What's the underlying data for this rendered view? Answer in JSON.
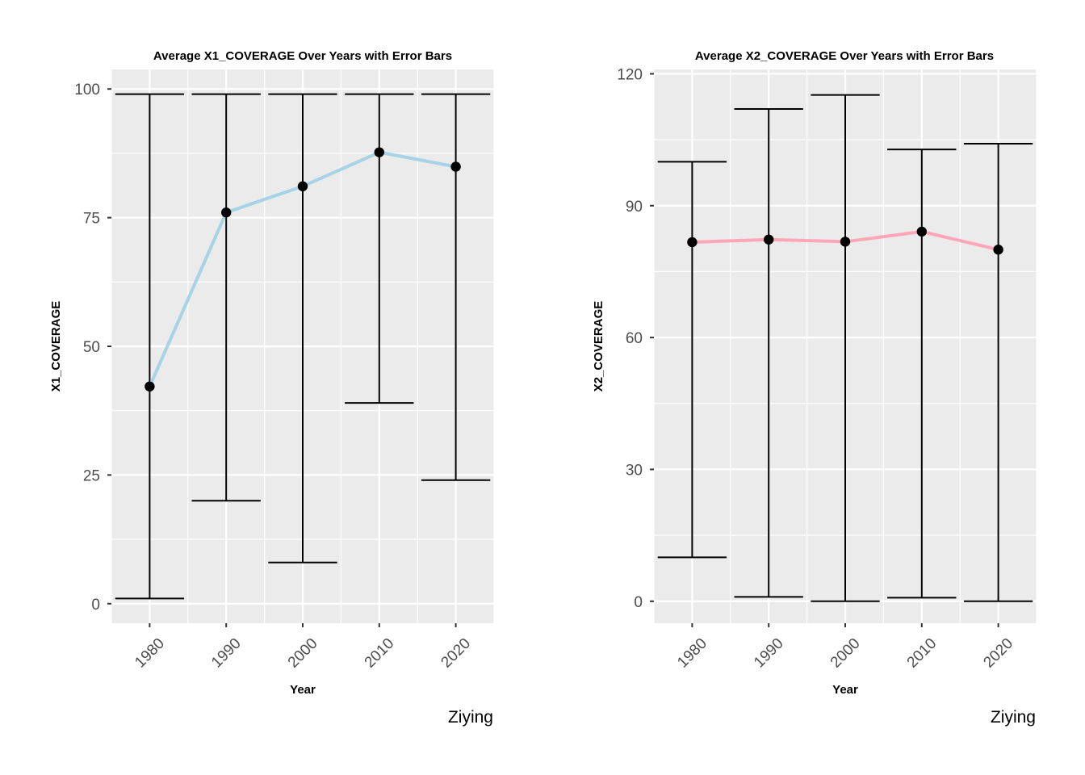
{
  "chart_data": [
    {
      "type": "line",
      "title": "Average X1_COVERAGE Over Years with Error Bars",
      "xlabel": "Year",
      "ylabel": "X1_COVERAGE",
      "caption": "Ziying",
      "x": [
        1980,
        1990,
        2000,
        2010,
        2020
      ],
      "x_tick_labels": [
        "1980",
        "1990",
        "2000",
        "2010",
        "2020"
      ],
      "y_ticks": [
        0,
        25,
        50,
        75,
        100
      ],
      "ylim": [
        -3.8,
        103.8
      ],
      "xlim": [
        1975,
        2025
      ],
      "line_color": "#a6d3e5",
      "series": [
        {
          "values": [
            42.2,
            76.0,
            81.1,
            87.7,
            84.9
          ],
          "ymin": [
            1,
            20,
            8,
            39,
            24
          ],
          "ymax": [
            99,
            99,
            99,
            99,
            99
          ]
        }
      ],
      "grid": true,
      "x_tick_rotation": 45
    },
    {
      "type": "line",
      "title": "Average X2_COVERAGE Over Years with Error Bars",
      "xlabel": "Year",
      "ylabel": "X2_COVERAGE",
      "caption": "Ziying",
      "x": [
        1980,
        1990,
        2000,
        2010,
        2020
      ],
      "x_tick_labels": [
        "1980",
        "1990",
        "2000",
        "2010",
        "2020"
      ],
      "y_ticks": [
        0,
        30,
        60,
        90,
        120
      ],
      "ylim": [
        -5.0,
        121.0
      ],
      "xlim": [
        1975,
        2025
      ],
      "line_color": "#ffa6b9",
      "series": [
        {
          "values": [
            81.7,
            82.3,
            81.8,
            84.1,
            80.0
          ],
          "ymin": [
            10.0,
            1.0,
            0.0,
            0.8,
            0.0
          ],
          "ymax": [
            100.0,
            112.0,
            115.2,
            102.8,
            104.1
          ]
        }
      ],
      "grid": true,
      "x_tick_rotation": 45
    }
  ]
}
